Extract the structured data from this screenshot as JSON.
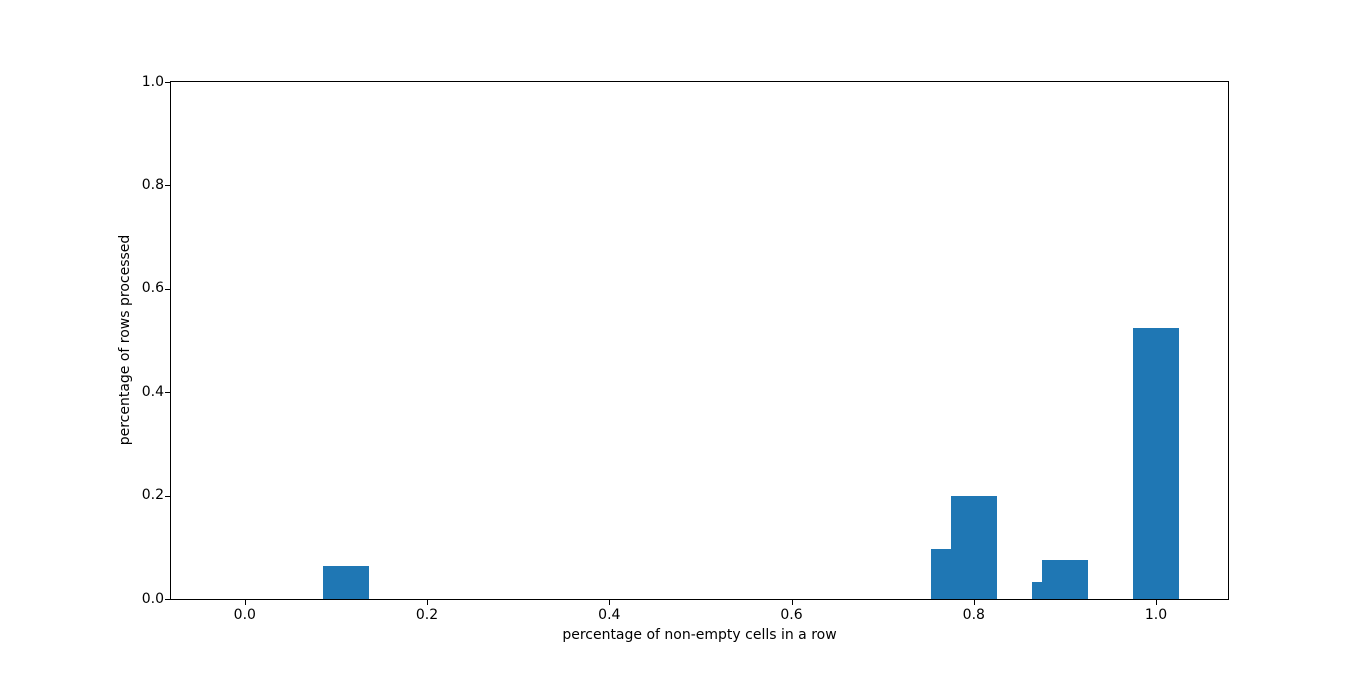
{
  "figure": {
    "background_color": "#ffffff"
  },
  "chart_data": {
    "type": "bar",
    "title": "",
    "xlabel": "percentage of non-empty cells in a row",
    "ylabel": "percentage of rows processed",
    "bar_color": "#1f77b4",
    "bar_width": 0.05,
    "x": [
      0.111,
      0.778,
      0.8,
      0.889,
      0.9,
      1.0
    ],
    "values": [
      0.063,
      0.096,
      0.2,
      0.033,
      0.075,
      0.524
    ],
    "xticks": [
      0.0,
      0.2,
      0.4,
      0.6,
      0.8,
      1.0
    ],
    "xtick_labels": [
      "0.0",
      "0.2",
      "0.4",
      "0.6",
      "0.8",
      "1.0"
    ],
    "yticks": [
      0.0,
      0.2,
      0.4,
      0.6,
      0.8,
      1.0
    ],
    "ytick_labels": [
      "0.0",
      "0.2",
      "0.4",
      "0.6",
      "0.8",
      "1.0"
    ],
    "xlim": [
      -0.081,
      1.079
    ],
    "ylim": [
      0.0,
      1.0
    ],
    "grid": false,
    "legend": null
  }
}
